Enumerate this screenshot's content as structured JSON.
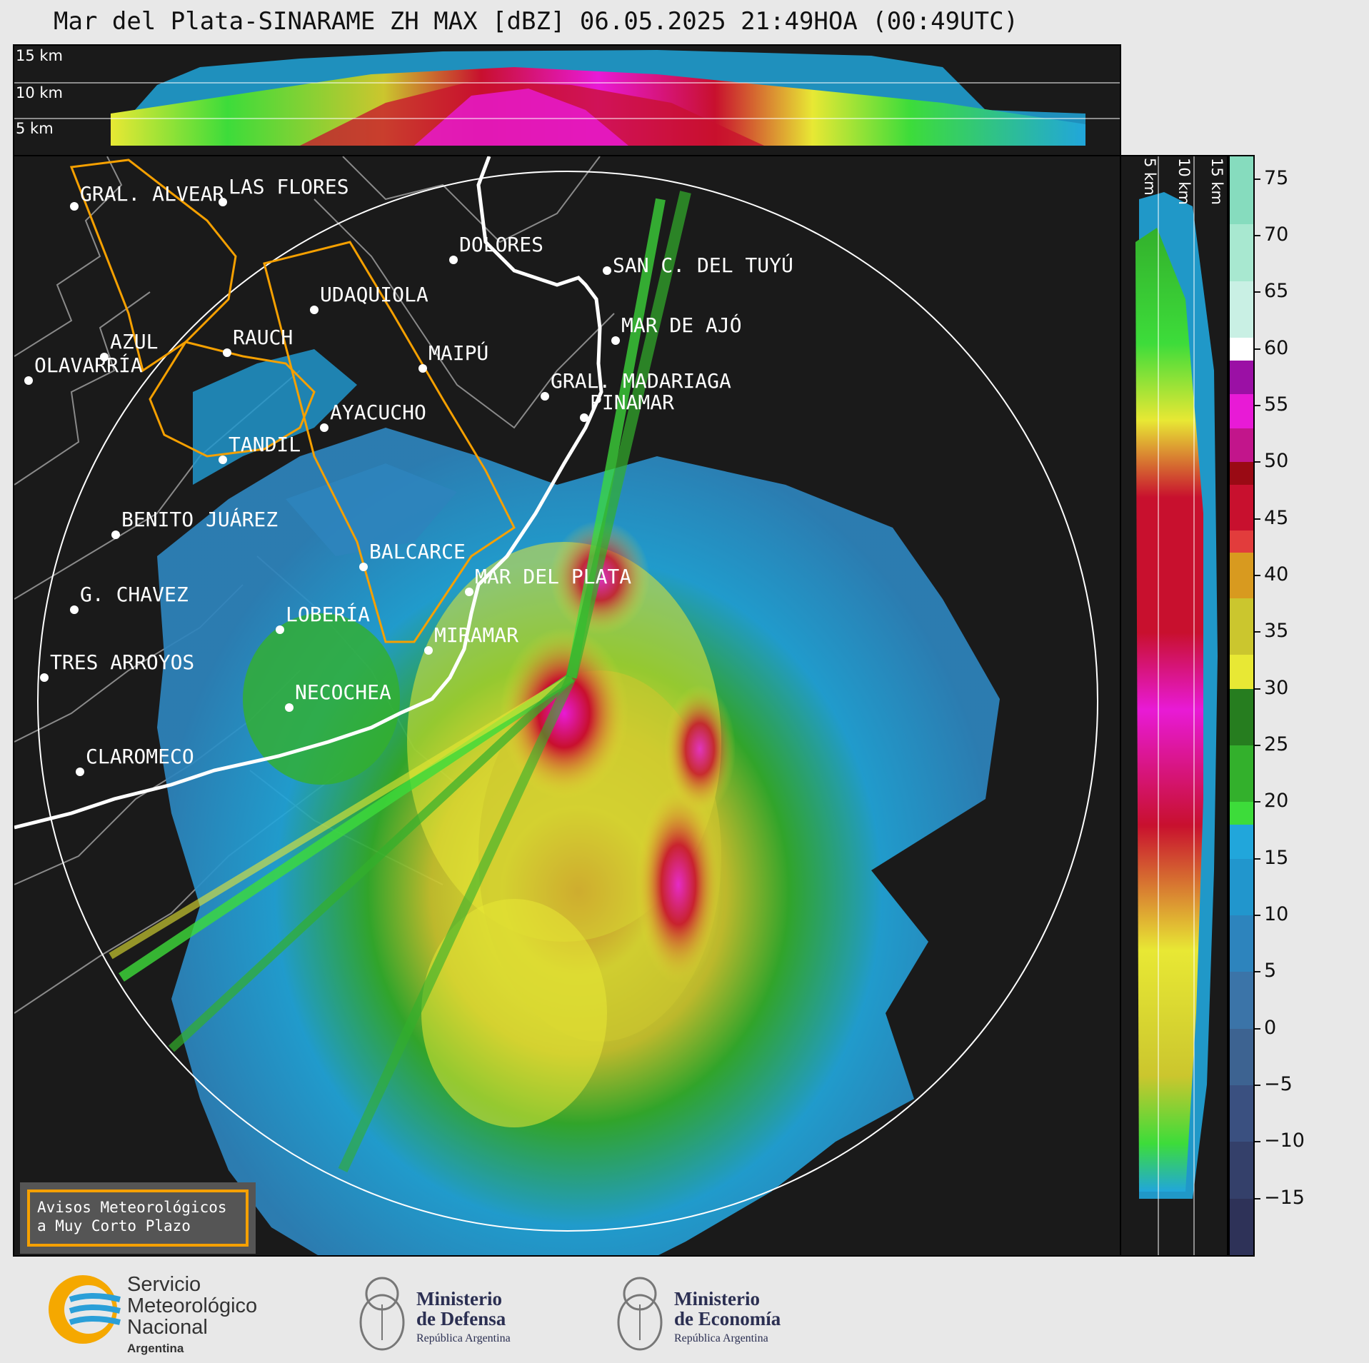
{
  "title": "Mar del Plata-SINARAME ZH MAX [dBZ] 06.05.2025 21:49HOA (00:49UTC)",
  "top_panel": {
    "height_labels": [
      "15 km",
      "10 km",
      "5 km"
    ]
  },
  "right_panel": {
    "height_labels": [
      "5 km",
      "10 km",
      "15 km"
    ]
  },
  "colorbar": {
    "unit": "dBZ",
    "ticks": [
      "75",
      "70",
      "65",
      "60",
      "55",
      "50",
      "45",
      "40",
      "35",
      "30",
      "25",
      "20",
      "15",
      "10",
      "5",
      "0",
      "−5",
      "−10",
      "−15"
    ],
    "range": [
      -20,
      77
    ],
    "stops": [
      {
        "from": -20,
        "to": -15,
        "color": "#2e3258"
      },
      {
        "from": -15,
        "to": -10,
        "color": "#34406a"
      },
      {
        "from": -10,
        "to": -5,
        "color": "#3a5080"
      },
      {
        "from": -5,
        "to": 0,
        "color": "#3d6391"
      },
      {
        "from": 0,
        "to": 5,
        "color": "#3b74a8"
      },
      {
        "from": 5,
        "to": 10,
        "color": "#2d84bd"
      },
      {
        "from": 10,
        "to": 15,
        "color": "#2196cd"
      },
      {
        "from": 15,
        "to": 18,
        "color": "#21a6db"
      },
      {
        "from": 18,
        "to": 20,
        "color": "#3ddc3a"
      },
      {
        "from": 20,
        "to": 25,
        "color": "#33b02c"
      },
      {
        "from": 25,
        "to": 30,
        "color": "#267d1f"
      },
      {
        "from": 30,
        "to": 33,
        "color": "#e8e834"
      },
      {
        "from": 33,
        "to": 38,
        "color": "#cbc62e"
      },
      {
        "from": 38,
        "to": 42,
        "color": "#d89a1f"
      },
      {
        "from": 42,
        "to": 44,
        "color": "#e23c3c"
      },
      {
        "from": 44,
        "to": 48,
        "color": "#c8102e"
      },
      {
        "from": 48,
        "to": 50,
        "color": "#9a0a14"
      },
      {
        "from": 50,
        "to": 53,
        "color": "#c2158b"
      },
      {
        "from": 53,
        "to": 56,
        "color": "#e81ad6"
      },
      {
        "from": 56,
        "to": 59,
        "color": "#9b10a5"
      },
      {
        "from": 59,
        "to": 61,
        "color": "#ffffff"
      },
      {
        "from": 61,
        "to": 66,
        "color": "#c9f0e4"
      },
      {
        "from": 66,
        "to": 71,
        "color": "#a8e8d0"
      },
      {
        "from": 71,
        "to": 77,
        "color": "#86dcbe"
      }
    ]
  },
  "cities": [
    {
      "name": "GRAL. ALVEAR"
    },
    {
      "name": "LAS FLORES"
    },
    {
      "name": "DOLORES"
    },
    {
      "name": "SAN C. DEL TUYÚ"
    },
    {
      "name": "UDAQUIOLA"
    },
    {
      "name": "MAR DE AJÓ"
    },
    {
      "name": "AZUL"
    },
    {
      "name": "RAUCH"
    },
    {
      "name": "MAIPÚ"
    },
    {
      "name": "OLAVARRÍA"
    },
    {
      "name": "GRAL. MADARIAGA"
    },
    {
      "name": "PINAMAR"
    },
    {
      "name": "AYACUCHO"
    },
    {
      "name": "TANDIL"
    },
    {
      "name": "BENITO JUÁREZ"
    },
    {
      "name": "BALCARCE"
    },
    {
      "name": "MAR DEL PLATA"
    },
    {
      "name": "G. CHAVEZ"
    },
    {
      "name": "LOBERÍA"
    },
    {
      "name": "MIRAMAR"
    },
    {
      "name": "TRES ARROYOS"
    },
    {
      "name": "NECOCHEA"
    },
    {
      "name": "CLAROMECO"
    }
  ],
  "legend": {
    "line1": "Avisos Meteorológicos",
    "line2": "a Muy Corto Plazo",
    "border_color": "#f5a000"
  },
  "footer": {
    "smn": {
      "line1": "Servicio",
      "line2": "Meteorológico",
      "line3": "Nacional",
      "sub": "Argentina"
    },
    "defensa": {
      "line1": "Ministerio",
      "line2": "de Defensa",
      "sub": "República Argentina"
    },
    "economia": {
      "line1": "Ministerio",
      "line2": "de Economía",
      "sub": "República Argentina"
    }
  }
}
